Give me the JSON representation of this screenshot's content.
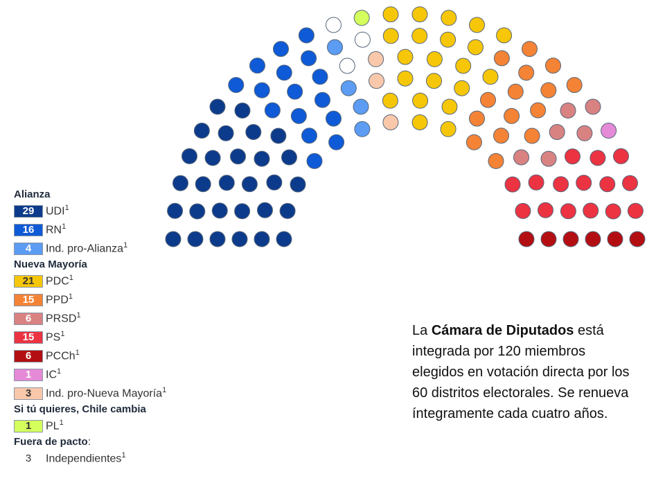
{
  "chart_data": {
    "type": "hemicycle",
    "total_seats": 120,
    "groups": [
      {
        "title": "Alianza",
        "parties": [
          {
            "seats": 29,
            "name": "UDI",
            "note": "1",
            "color": "#0d3b8c"
          },
          {
            "seats": 16,
            "name": "RN",
            "note": "1",
            "color": "#0f5ad6"
          },
          {
            "seats": 4,
            "name": "Ind. pro-Alianza",
            "note": "1",
            "color": "#5c9cf2"
          }
        ]
      },
      {
        "title": "Nueva Mayoría",
        "parties": [
          {
            "seats": 21,
            "name": "PDC",
            "note": "1",
            "color": "#f6c609"
          },
          {
            "seats": 15,
            "name": "PPD",
            "note": "1",
            "color": "#f48336"
          },
          {
            "seats": 6,
            "name": "PRSD",
            "note": "1",
            "color": "#d98282"
          },
          {
            "seats": 15,
            "name": "PS",
            "note": "1",
            "color": "#ec3342"
          },
          {
            "seats": 6,
            "name": "PCCh",
            "note": "1",
            "color": "#b30f12"
          },
          {
            "seats": 1,
            "name": "IC",
            "note": "1",
            "color": "#e58ad6"
          },
          {
            "seats": 3,
            "name": "Ind. pro-Nueva Mayoría",
            "note": "1",
            "color": "#f9c8aa"
          }
        ]
      },
      {
        "title": "Si tú quieres, Chile cambia",
        "parties": [
          {
            "seats": 1,
            "name": "PL",
            "note": "1",
            "color": "#d4ff5c"
          }
        ]
      },
      {
        "title": "Fuera de pacto",
        "title_suffix": ":",
        "parties": [
          {
            "seats": 3,
            "name": "Independientes",
            "note": "1",
            "color": "#ffffff"
          }
        ]
      }
    ]
  },
  "description": {
    "prefix": "La ",
    "bold": "Cámara de Diputados",
    "rest": " está integrada por 120 miembros elegidos en votación directa por los 60 distritos electorales. Se renueva íntegramente cada cuatro años."
  }
}
